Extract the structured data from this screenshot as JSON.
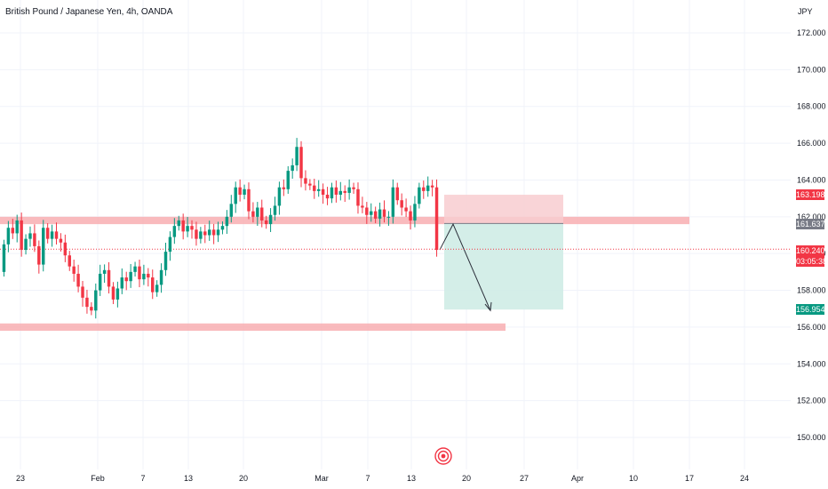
{
  "header": {
    "title": "British Pound / Japanese Yen, 4h, OANDA",
    "currency": "JPY"
  },
  "chart_data": {
    "type": "candlestick",
    "symbol": "GBPJPY",
    "interval": "4h",
    "y_axis": {
      "unit": "JPY",
      "ticks": [
        "172.000",
        "170.000",
        "168.000",
        "166.000",
        "164.000",
        "162.000",
        "160.000",
        "158.000",
        "156.000",
        "154.000",
        "152.000",
        "150.000"
      ],
      "range": [
        148.6,
        173.4
      ]
    },
    "x_axis": {
      "ticks": [
        "23",
        "Feb",
        "7",
        "13",
        "20",
        "Mar",
        "7",
        "13",
        "20",
        "27",
        "Apr",
        "10",
        "17",
        "24"
      ]
    },
    "price_path": [
      159.0,
      160.5,
      161.4,
      161.1,
      161.8,
      160.2,
      160.8,
      161.1,
      160.4,
      159.4,
      161.4,
      160.8,
      161.2,
      160.8,
      160.6,
      159.9,
      159.3,
      158.9,
      158.2,
      157.6,
      157.1,
      156.9,
      158.0,
      158.9,
      159.1,
      158.2,
      157.5,
      158.1,
      158.7,
      158.5,
      159.0,
      159.3,
      158.6,
      158.9,
      158.7,
      157.9,
      158.3,
      159.1,
      160.1,
      160.9,
      161.5,
      161.8,
      161.2,
      161.5,
      161.3,
      160.8,
      161.2,
      161.0,
      161.3,
      161.0,
      161.3,
      161.5,
      162.0,
      162.7,
      163.6,
      163.2,
      163.5,
      162.3,
      162.0,
      162.5,
      161.8,
      161.6,
      162.1,
      162.6,
      163.6,
      163.5,
      164.5,
      164.8,
      165.8,
      164.1,
      163.8,
      163.7,
      163.4,
      163.5,
      163.2,
      163.0,
      163.6,
      163.2,
      163.4,
      163.3,
      163.6,
      163.5,
      162.6,
      162.5,
      162.1,
      162.3,
      161.9,
      162.4,
      162.0,
      162.0,
      163.6,
      162.9,
      162.5,
      162.3,
      161.8,
      162.7,
      163.6,
      163.4,
      163.7,
      163.6,
      160.2
    ],
    "zones": [
      {
        "label": "resistance zone",
        "from": 161.6,
        "to": 162.0
      },
      {
        "label": "support zone",
        "from": 155.8,
        "to": 156.2
      }
    ],
    "position": {
      "type": "short",
      "entry": 161.637,
      "stop_loss": 163.198,
      "take_profit": 156.954
    },
    "price_labels": [
      {
        "value": "163.198",
        "color": "#f23645"
      },
      {
        "value": "161.637",
        "color": "#787b86"
      },
      {
        "value": "160.240",
        "color": "#f23645"
      },
      {
        "value": "03:05:38",
        "color": "#f23645"
      },
      {
        "value": "156.954",
        "color": "#089981"
      }
    ],
    "current_price": 160.24,
    "countdown": "03:05:38"
  },
  "colors": {
    "up": "#089981",
    "down": "#f23645",
    "zone": "#f7a9ad",
    "stop_zone": "#f8cdd0",
    "target_zone": "#cfece6",
    "grid": "#f0f3fa",
    "axis_text": "#131722"
  },
  "icons": {
    "logo": "tradingview-logo-icon"
  }
}
